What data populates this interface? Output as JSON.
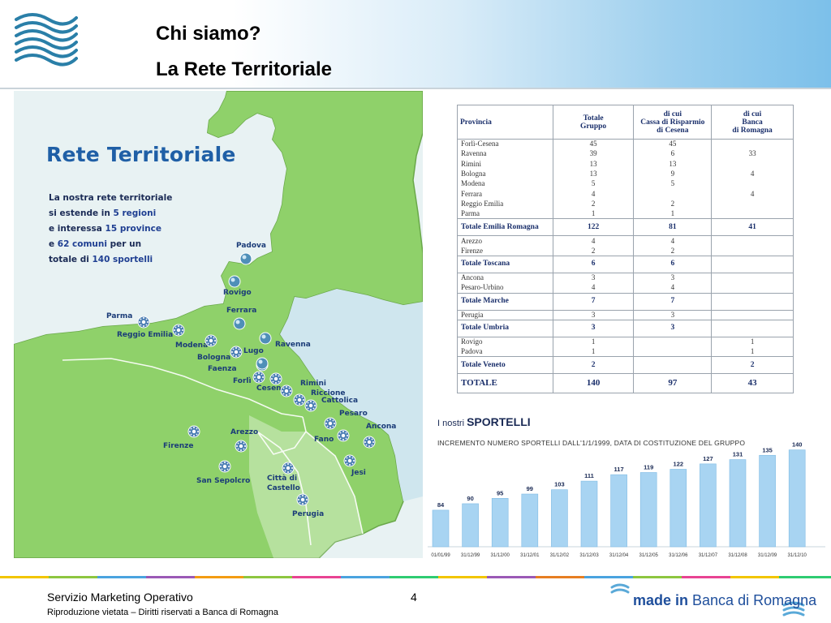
{
  "header": {
    "title_line1": "Chi siamo?",
    "title_line2": "La Rete Territoriale",
    "logo_icon": "wave-logo-icon"
  },
  "map": {
    "title": "Rete Territoriale",
    "intro": {
      "p1": "La nostra rete territoriale",
      "p2a": "si estende in ",
      "p2b": "5 regioni",
      "p3a": "e interessa ",
      "p3b": "15 province",
      "p4a": "e ",
      "p4b": "62 comuni",
      "p4c": " per un",
      "p5a": "totale di ",
      "p5b": "140 sportelli"
    },
    "cities": [
      "Padova",
      "Rovigo",
      "Ferrara",
      "Parma",
      "Reggio Emilia",
      "Modena",
      "Bologna",
      "Lugo",
      "Ravenna",
      "Faenza",
      "Forlì",
      "Cesena",
      "Rimini",
      "Riccione",
      "Cattolica",
      "Pesaro",
      "Ancona",
      "Fano",
      "Jesi",
      "Arezzo",
      "Firenze",
      "San Sepolcro",
      "Città di",
      "Castello",
      "Perugia"
    ]
  },
  "table": {
    "headers": {
      "provincia": "Provincia",
      "totale_1": "Totale",
      "totale_2": "Gruppo",
      "carisp_1": "di cui",
      "carisp_2": "Cassa di Risparmio",
      "carisp_3": "di Cesena",
      "bdr_1": "di cui",
      "bdr_2": "Banca",
      "bdr_3": "di Romagna"
    },
    "groups": [
      {
        "rows": [
          [
            "Forlì-Cesena",
            "45",
            "45",
            ""
          ],
          [
            "Ravenna",
            "39",
            "6",
            "33"
          ],
          [
            "Rimini",
            "13",
            "13",
            ""
          ],
          [
            "Bologna",
            "13",
            "9",
            "4"
          ],
          [
            "Modena",
            "5",
            "5",
            ""
          ],
          [
            "Ferrara",
            "4",
            "",
            "4"
          ],
          [
            "Reggio Emilia",
            "2",
            "2",
            ""
          ],
          [
            "Parma",
            "1",
            "1",
            ""
          ]
        ],
        "total": [
          "Totale Emilia Romagna",
          "122",
          "81",
          "41"
        ]
      },
      {
        "rows": [
          [
            "Arezzo",
            "4",
            "4",
            ""
          ],
          [
            "Firenze",
            "2",
            "2",
            ""
          ]
        ],
        "total": [
          "Totale Toscana",
          "6",
          "6",
          ""
        ]
      },
      {
        "rows": [
          [
            "Ancona",
            "3",
            "3",
            ""
          ],
          [
            "Pesaro-Urbino",
            "4",
            "4",
            ""
          ]
        ],
        "total": [
          "Totale Marche",
          "7",
          "7",
          ""
        ]
      },
      {
        "rows": [
          [
            "Perugia",
            "3",
            "3",
            ""
          ]
        ],
        "total": [
          "Totale Umbria",
          "3",
          "3",
          ""
        ]
      },
      {
        "rows": [
          [
            "Rovigo",
            "1",
            "",
            "1"
          ],
          [
            "Padova",
            "1",
            "",
            "1"
          ]
        ],
        "total": [
          "Totale Veneto",
          "2",
          "",
          "2"
        ]
      }
    ],
    "grand_total": [
      "TOTALE",
      "140",
      "97",
      "43"
    ]
  },
  "chart": {
    "title_prefix": "I nostri ",
    "title_bold": "SPORTELLI",
    "subtitle": "INCREMENTO NUMERO SPORTELLI DALL'1/1/1999, DATA DI COSTITUZIONE DEL GRUPPO"
  },
  "chart_data": {
    "type": "bar",
    "title": "I nostri SPORTELLI",
    "categories": [
      "01/01/99",
      "31/12/99",
      "31/12/00",
      "31/12/01",
      "31/12/02",
      "31/12/03",
      "31/12/04",
      "31/12/05",
      "31/12/06",
      "31/12/07",
      "31/12/08",
      "31/12/09",
      "31/12/10"
    ],
    "values": [
      84,
      90,
      95,
      99,
      103,
      111,
      117,
      119,
      122,
      127,
      131,
      135,
      140
    ],
    "ylim": [
      50,
      145
    ],
    "bar_color": "#a8d4f2",
    "grid": false,
    "legend": "none"
  },
  "footer": {
    "department": "Servizio Marketing Operativo",
    "page": "4",
    "note": "Riproduzione vietata – Diritti riservati a Banca di Romagna",
    "brand_bold": "made in",
    "brand_rest": " Banca di Romagna"
  },
  "colors": {
    "accent_blue": "#1f5fa6",
    "map_green": "#8fd16a",
    "sea": "#e8f2f3"
  }
}
